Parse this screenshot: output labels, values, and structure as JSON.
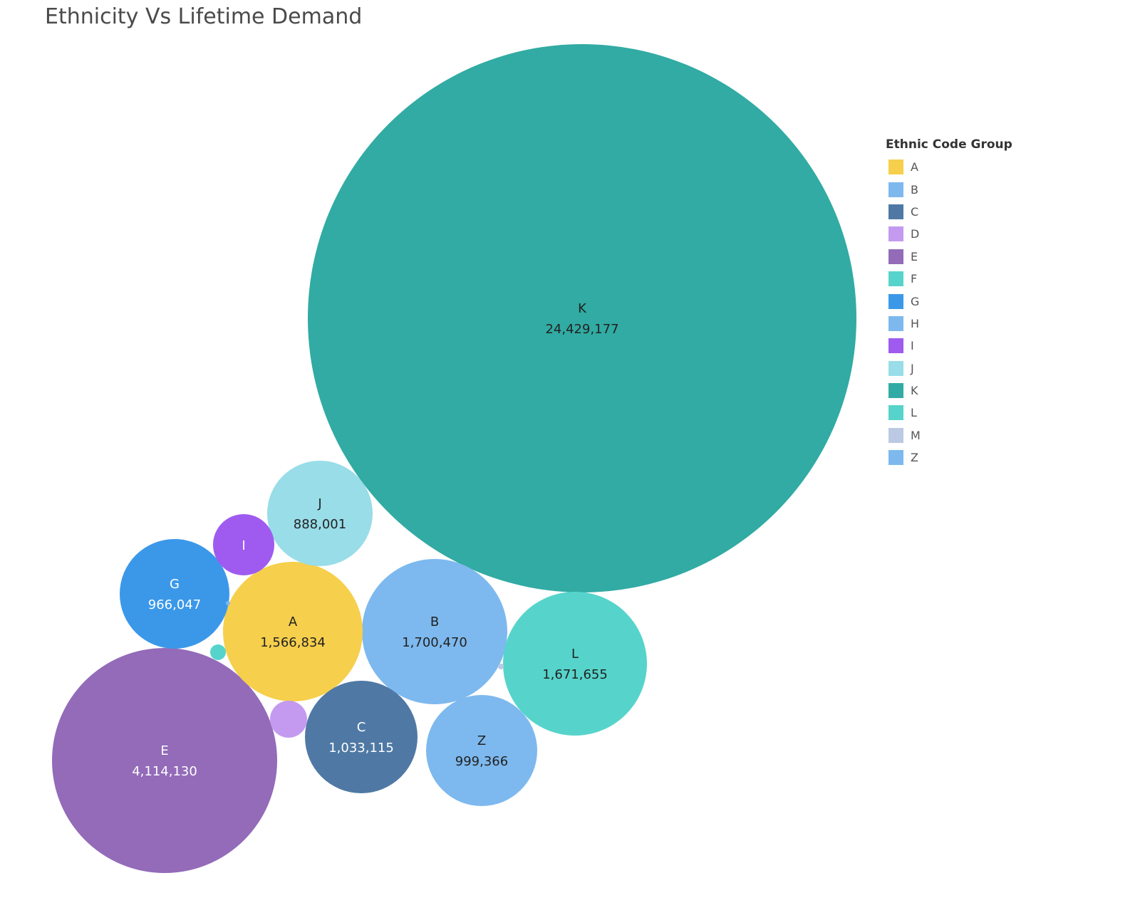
{
  "chart_data": {
    "type": "bubble",
    "title": "Ethnicity Vs Lifetime Demand",
    "legend": {
      "title": "Ethnic Code Group",
      "placement": "right",
      "items": [
        {
          "label": "A",
          "color": "#F6CF4C"
        },
        {
          "label": "B",
          "color": "#7DB9EE"
        },
        {
          "label": "C",
          "color": "#4F79A4"
        },
        {
          "label": "D",
          "color": "#C49AF0"
        },
        {
          "label": "E",
          "color": "#936BB9"
        },
        {
          "label": "F",
          "color": "#56D4CB"
        },
        {
          "label": "G",
          "color": "#3B98E9"
        },
        {
          "label": "H",
          "color": "#7DB9EE"
        },
        {
          "label": "I",
          "color": "#9F5BF0"
        },
        {
          "label": "J",
          "color": "#98DDE8"
        },
        {
          "label": "K",
          "color": "#31ABA3"
        },
        {
          "label": "L",
          "color": "#56D4CB"
        },
        {
          "label": "M",
          "color": "#BCC9E3"
        },
        {
          "label": "Z",
          "color": "#7DB9EE"
        }
      ]
    },
    "series": [
      {
        "name": "K",
        "value": 24429177,
        "value_label": "24,429,177",
        "color": "#31ABA3",
        "text_color": "#222222"
      },
      {
        "name": "E",
        "value": 4114130,
        "value_label": "4,114,130",
        "color": "#936BB9",
        "text_color": "#ffffff"
      },
      {
        "name": "B",
        "value": 1700470,
        "value_label": "1,700,470",
        "color": "#7DB9EE",
        "text_color": "#222222"
      },
      {
        "name": "L",
        "value": 1671655,
        "value_label": "1,671,655",
        "color": "#56D4CB",
        "text_color": "#222222"
      },
      {
        "name": "A",
        "value": 1566834,
        "value_label": "1,566,834",
        "color": "#F6CF4C",
        "text_color": "#222222"
      },
      {
        "name": "C",
        "value": 1033115,
        "value_label": "1,033,115",
        "color": "#4F79A4",
        "text_color": "#ffffff"
      },
      {
        "name": "Z",
        "value": 999366,
        "value_label": "999,366",
        "color": "#7DB9EE",
        "text_color": "#222222"
      },
      {
        "name": "G",
        "value": 966047,
        "value_label": "966,047",
        "color": "#3B98E9",
        "text_color": "#ffffff"
      },
      {
        "name": "J",
        "value": 888001,
        "value_label": "888,001",
        "color": "#98DDE8",
        "text_color": "#222222"
      },
      {
        "name": "I",
        "value": 300000,
        "value_label": "",
        "color": "#9F5BF0",
        "text_color": "#ffffff"
      },
      {
        "name": "D",
        "value": 110000,
        "value_label": "",
        "color": "#C49AF0",
        "text_color": "#222222"
      },
      {
        "name": "F",
        "value": 20000,
        "value_label": "",
        "color": "#56D4CB",
        "text_color": "#222222"
      },
      {
        "name": "M",
        "value": 1500,
        "value_label": "",
        "color": "#BCC9E3",
        "text_color": "#222222"
      },
      {
        "name": "H",
        "value": 1500,
        "value_label": "",
        "color": "#7DB9EE",
        "text_color": "#222222"
      }
    ]
  }
}
